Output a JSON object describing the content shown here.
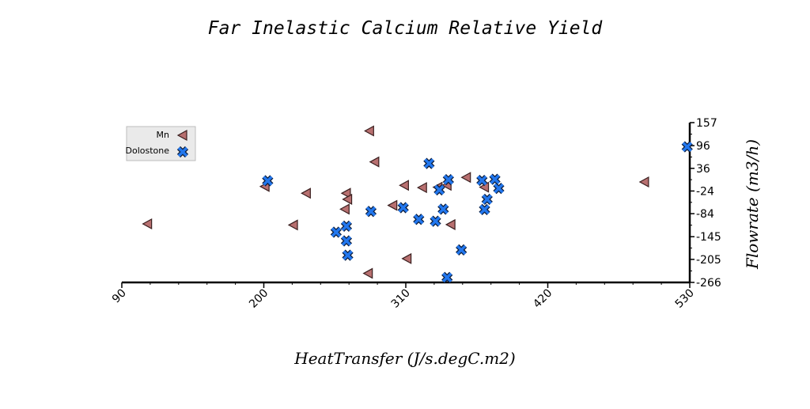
{
  "chart_data": {
    "type": "scatter",
    "title": "Far Inelastic Calcium Relative Yield",
    "xlabel": "HeatTransfer (J/s.degC.m2)",
    "ylabel": "Flowrate (m3/h)",
    "xlim": [
      90,
      530
    ],
    "ylim": [
      -266,
      157
    ],
    "x_ticks": [
      "90",
      "200",
      "310",
      "420",
      "530"
    ],
    "y_ticks": [
      "157",
      "96",
      "36",
      "-24",
      "-84",
      "-145",
      "-205",
      "-266"
    ],
    "x_tick_values": [
      90,
      200,
      310,
      420,
      530
    ],
    "y_tick_values": [
      157,
      96,
      36,
      -24,
      -84,
      -145,
      -205,
      -266
    ],
    "y_axis_side": "right",
    "legend_position": "top-left",
    "grid": false,
    "series": [
      {
        "name": "Mn",
        "marker": "triangle-left",
        "color": "#b87070",
        "points": [
          [
            110,
            -111
          ],
          [
            201,
            -12
          ],
          [
            223,
            -114
          ],
          [
            233,
            -30
          ],
          [
            264,
            -30
          ],
          [
            265,
            -46
          ],
          [
            263,
            -72
          ],
          [
            282,
            135
          ],
          [
            286,
            53
          ],
          [
            281,
            -242
          ],
          [
            300,
            -62
          ],
          [
            309,
            -9
          ],
          [
            311,
            -203
          ],
          [
            323,
            -15
          ],
          [
            335,
            -14
          ],
          [
            342,
            -9
          ],
          [
            345,
            -113
          ],
          [
            357,
            12
          ],
          [
            371,
            -14
          ],
          [
            495,
            0
          ]
        ]
      },
      {
        "name": "Dolostone",
        "marker": "x",
        "color": "#2277ee",
        "points": [
          [
            203,
            3
          ],
          [
            256,
            -133
          ],
          [
            264,
            -117
          ],
          [
            264,
            -156
          ],
          [
            265,
            -194
          ],
          [
            283,
            -78
          ],
          [
            308,
            -68
          ],
          [
            320,
            -99
          ],
          [
            328,
            49
          ],
          [
            333,
            -104
          ],
          [
            336,
            -21
          ],
          [
            339,
            -72
          ],
          [
            343,
            6
          ],
          [
            342,
            -253
          ],
          [
            353,
            -180
          ],
          [
            369,
            4
          ],
          [
            371,
            -73
          ],
          [
            373,
            -46
          ],
          [
            379,
            7
          ],
          [
            382,
            -17
          ],
          [
            528,
            93
          ]
        ]
      }
    ]
  }
}
